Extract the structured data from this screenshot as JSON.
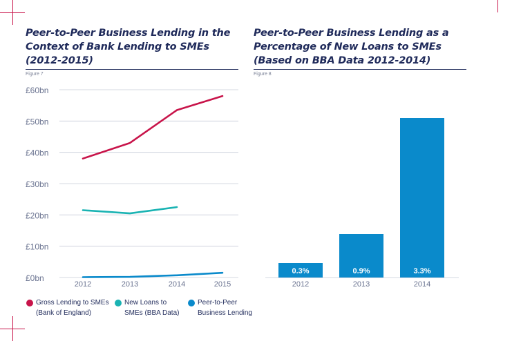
{
  "left": {
    "title_lines": [
      "Peer-to-Peer Business Lending in the",
      "Context of Bank Lending to SMEs",
      "(2012-2015)"
    ],
    "figure_label": "Figure 7"
  },
  "right": {
    "title_lines": [
      "Peer-to-Peer Business Lending as a",
      "Percentage of New Loans to SMEs",
      "(Based on BBA Data 2012-2014)"
    ],
    "figure_label": "Figure 8"
  },
  "colors": {
    "gross": "#c8144a",
    "new_loans": "#1ab3b3",
    "p2p": "#0a8acb",
    "axis_text": "#6a7390",
    "grid": "#c6ccd8",
    "bar": "#0a8acb",
    "bar_label": "#ffffff",
    "crop": "#c8144a"
  },
  "legend": [
    {
      "lines": [
        "Gross Lending to SMEs",
        "(Bank of England)"
      ],
      "color": "#c8144a"
    },
    {
      "lines": [
        "New Loans to",
        "SMEs (BBA Data)"
      ],
      "color": "#1ab3b3"
    },
    {
      "lines": [
        "Peer-to-Peer",
        "Business Lending"
      ],
      "color": "#0a8acb"
    }
  ],
  "chart_data": [
    {
      "type": "line",
      "x": [
        2012,
        2013,
        2014,
        2015
      ],
      "ylim": [
        0,
        60
      ],
      "yticks": [
        0,
        10,
        20,
        30,
        40,
        50,
        60
      ],
      "ytick_labels": [
        "£0bn",
        "£10bn",
        "£20bn",
        "£30bn",
        "£40bn",
        "£50bn",
        "£60bn"
      ],
      "xtick_labels": [
        "2012",
        "2013",
        "2014",
        "2015"
      ],
      "grid": true,
      "series": [
        {
          "name": "Gross Lending to SMEs (Bank of England)",
          "color": "#c8144a",
          "values": [
            38,
            43,
            53.5,
            58
          ]
        },
        {
          "name": "New Loans to SMEs (BBA Data)",
          "color": "#1ab3b3",
          "values": [
            21.5,
            20.5,
            22.5,
            null
          ]
        },
        {
          "name": "Peer-to-Peer Business Lending",
          "color": "#0a8acb",
          "values": [
            0.1,
            0.2,
            0.7,
            1.5
          ]
        }
      ]
    },
    {
      "type": "bar",
      "categories": [
        "2012",
        "2013",
        "2014"
      ],
      "values": [
        0.3,
        0.9,
        3.3
      ],
      "data_labels": [
        "0.3%",
        "0.9%",
        "3.3%"
      ],
      "grid": false
    }
  ]
}
